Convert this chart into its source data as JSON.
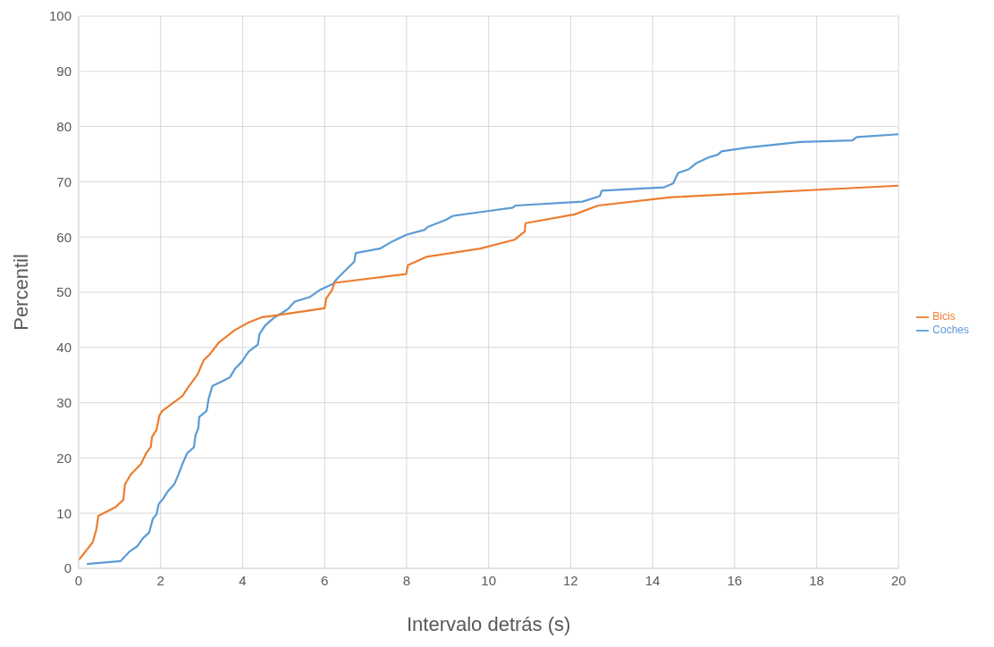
{
  "chart_data": {
    "type": "line",
    "xlabel": "Intervalo detrás (s)",
    "ylabel": "Percentil",
    "xlim": [
      0,
      20
    ],
    "xticks": [
      0,
      2,
      4,
      6,
      8,
      10,
      12,
      14,
      16,
      18,
      20
    ],
    "ylim": [
      0,
      100
    ],
    "yticks": [
      0,
      10,
      20,
      30,
      40,
      50,
      60,
      70,
      80,
      90,
      100
    ],
    "grid": true,
    "legend": "right",
    "marker": "none",
    "series": [
      {
        "name": "Coches",
        "color": "#5b9bd5",
        "x": [
          0.2,
          1.02,
          1.25,
          1.43,
          1.56,
          1.72,
          1.81,
          1.9,
          1.95,
          2.06,
          2.17,
          2.33,
          2.44,
          2.53,
          2.65,
          2.81,
          2.85,
          2.92,
          2.94,
          3.12,
          3.17,
          3.26,
          3.51,
          3.69,
          3.82,
          3.98,
          4.14,
          4.37,
          4.41,
          4.55,
          4.77,
          4.95,
          5.11,
          5.27,
          5.63,
          5.88,
          6.2,
          6.31,
          6.54,
          6.72,
          6.76,
          7.35,
          7.65,
          7.99,
          8.44,
          8.51,
          8.96,
          9.12,
          9.89,
          10.59,
          10.66,
          12.29,
          12.71,
          12.76,
          14.28,
          14.5,
          14.62,
          14.89,
          15.07,
          15.36,
          15.59,
          15.68,
          16.31,
          17.6,
          18.87,
          18.98,
          20
        ],
        "values": [
          0.8,
          1.3,
          3.1,
          4,
          5.4,
          6.5,
          9,
          9.8,
          11.6,
          12.6,
          13.9,
          15.2,
          17.1,
          18.9,
          20.9,
          21.9,
          24.1,
          25.4,
          27.4,
          28.5,
          30.7,
          33,
          33.9,
          34.6,
          36.2,
          37.4,
          39.2,
          40.5,
          42.4,
          44,
          45.4,
          46.2,
          47,
          48.3,
          49.1,
          50.4,
          51.5,
          52.5,
          54.2,
          55.5,
          57.1,
          57.9,
          59.2,
          60.4,
          61.3,
          61.8,
          63.1,
          63.8,
          64.6,
          65.3,
          65.7,
          66.4,
          67.4,
          68.4,
          69,
          69.7,
          71.6,
          72.3,
          73.4,
          74.4,
          74.9,
          75.5,
          76.2,
          77.2,
          77.5,
          78.1,
          78.6
        ]
      },
      {
        "name": "Bicis",
        "color": "#ed7d31",
        "x": [
          0,
          0.34,
          0.43,
          0.48,
          0.9,
          1.09,
          1.13,
          1.27,
          1.52,
          1.65,
          1.76,
          1.79,
          1.9,
          1.97,
          2.04,
          2.53,
          2.67,
          2.9,
          3.05,
          3.19,
          3.42,
          3.8,
          4.14,
          4.48,
          4.82,
          6,
          6.04,
          6.18,
          6.24,
          7.99,
          8.03,
          8.48,
          9.8,
          10.63,
          10.88,
          10.9,
          12.1,
          12.67,
          14.46,
          20
        ],
        "values": [
          1.5,
          4.7,
          7,
          9.5,
          11.1,
          12.4,
          15.2,
          17,
          18.9,
          20.9,
          22,
          23.8,
          25.1,
          27.7,
          28.5,
          31.2,
          32.8,
          35.1,
          37.7,
          38.7,
          40.9,
          43.1,
          44.5,
          45.5,
          45.8,
          47.1,
          48.9,
          50.4,
          51.7,
          53.3,
          54.9,
          56.4,
          57.9,
          59.5,
          61,
          62.5,
          64.1,
          65.7,
          67.2,
          69.3
        ]
      }
    ]
  }
}
